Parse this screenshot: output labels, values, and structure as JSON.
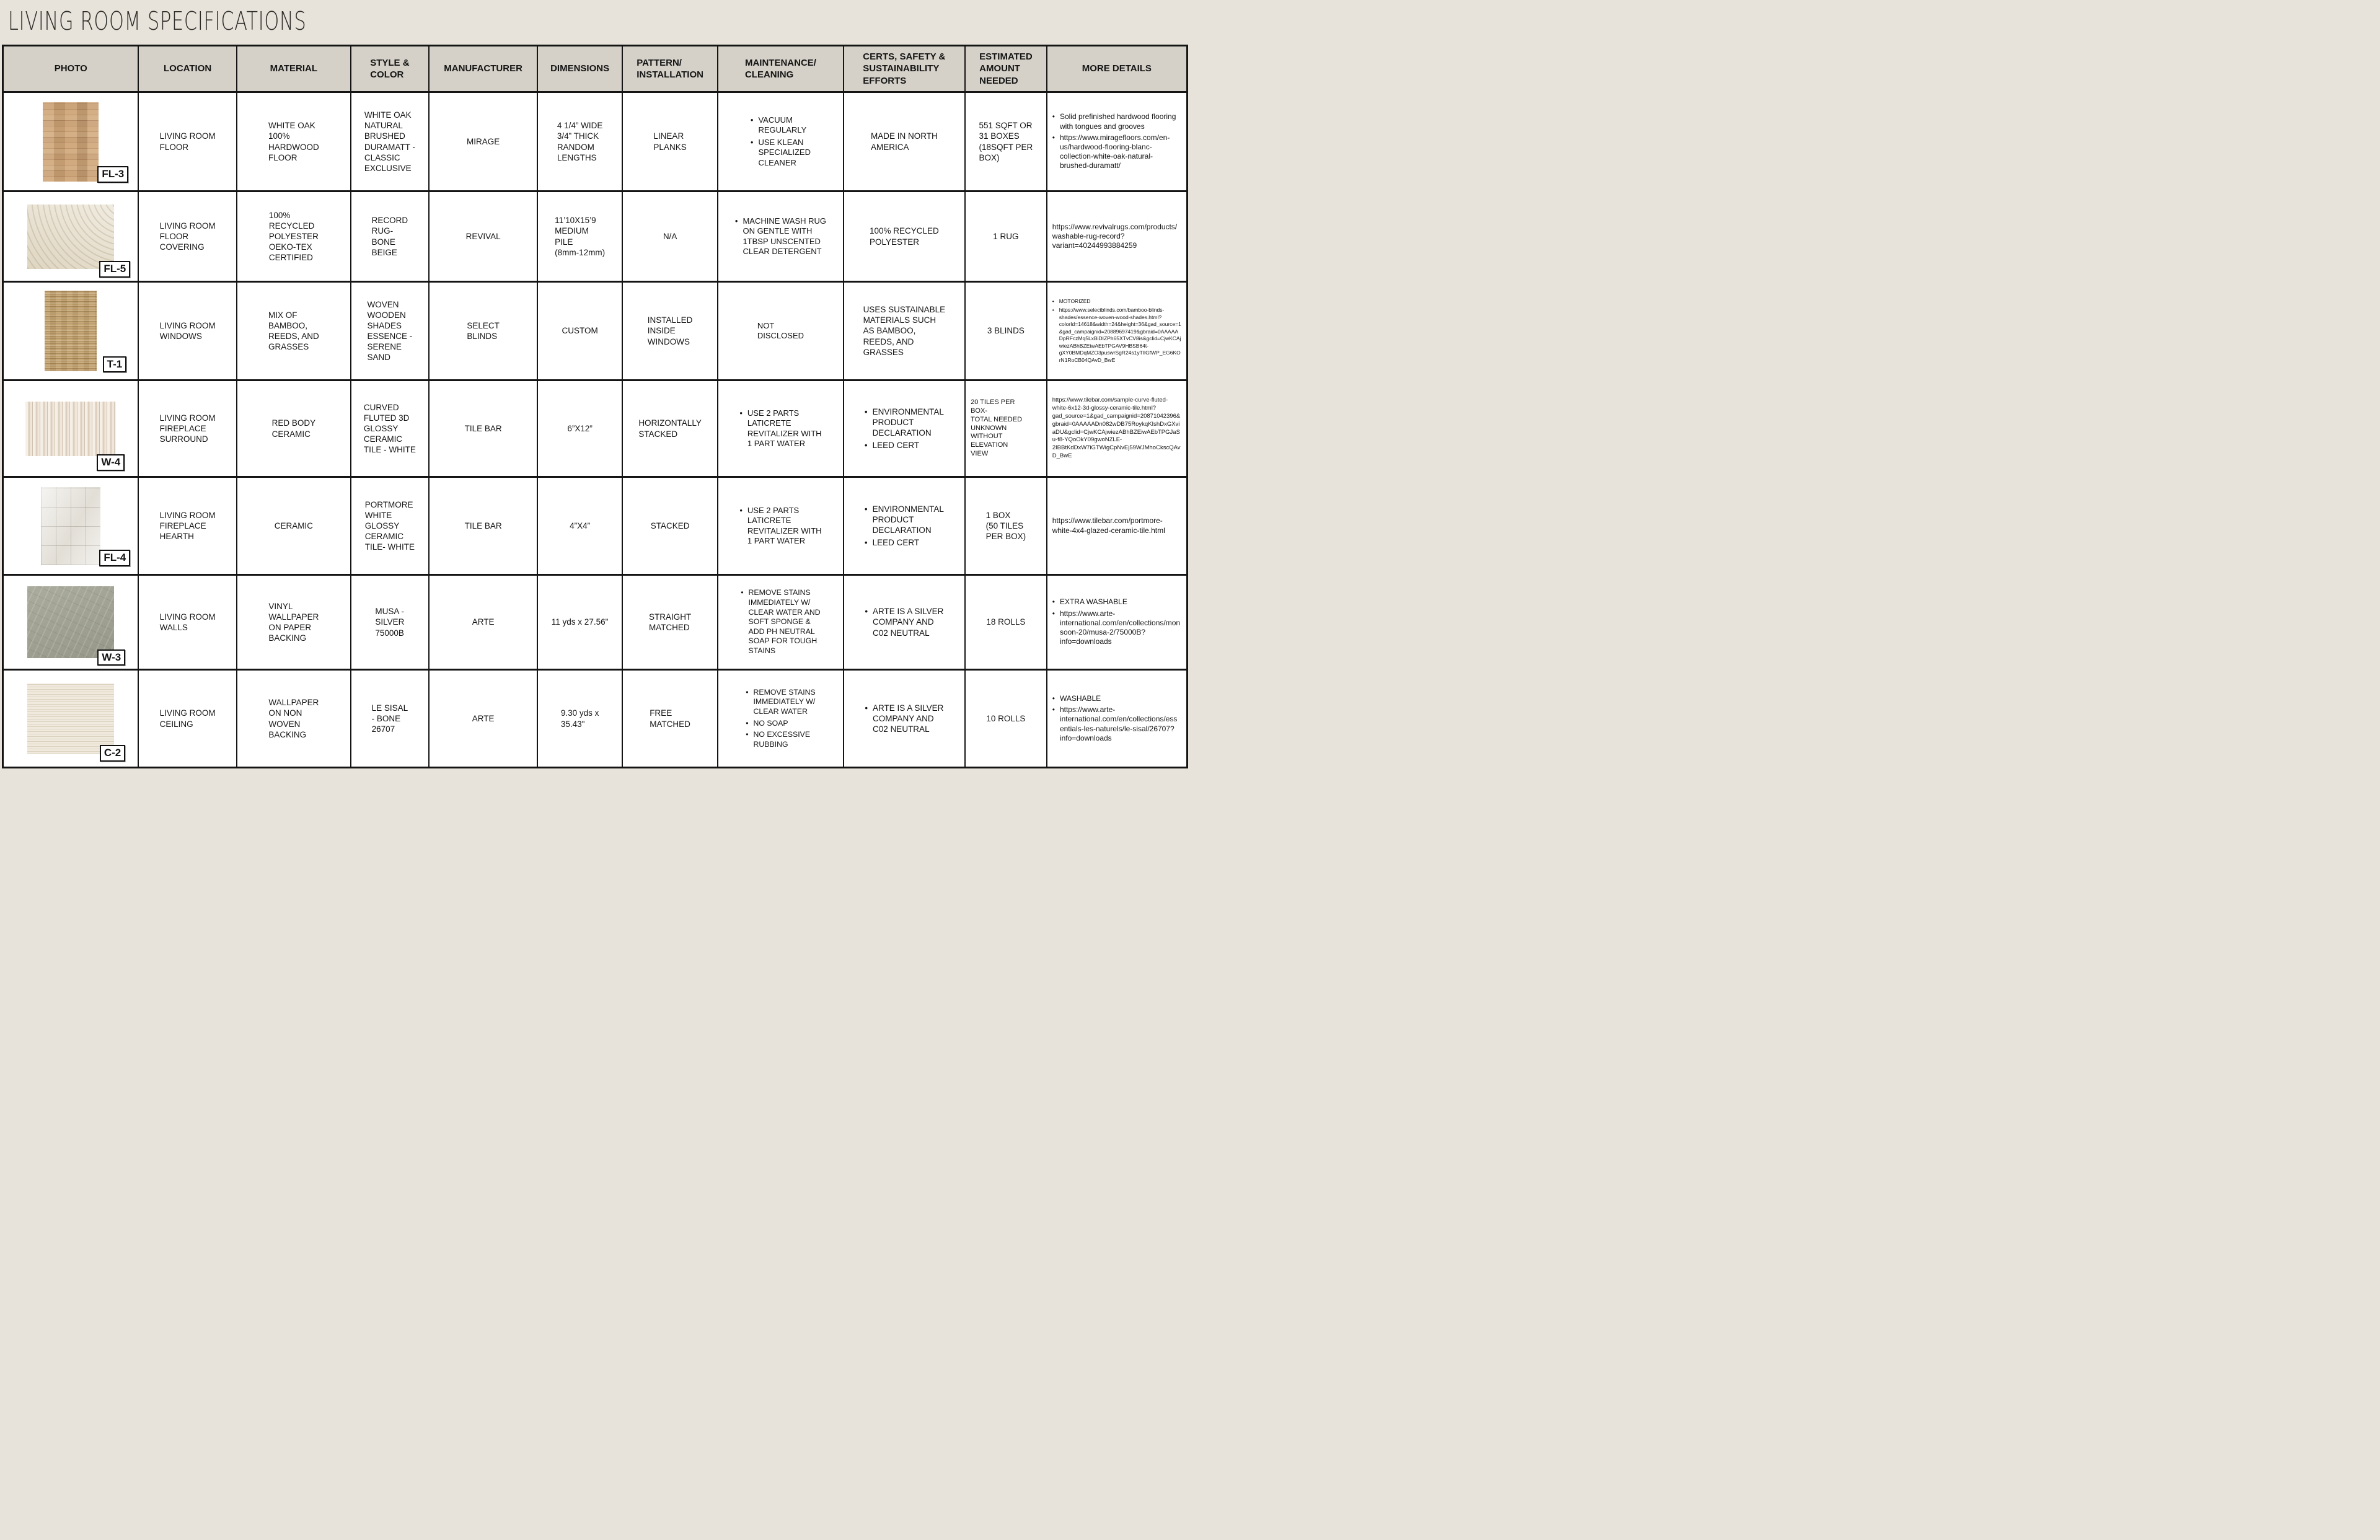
{
  "page": {
    "title": "LIVING ROOM SPECIFICATIONS"
  },
  "table": {
    "columns": [
      "PHOTO",
      "LOCATION",
      "MATERIAL",
      "STYLE &\nCOLOR",
      "MANUFACTURER",
      "DIMENSIONS",
      "PATTERN/\nINSTALLATION",
      "MAINTENANCE/\nCLEANING",
      "CERTS, SAFETY &\nSUSTAINABILITY\nEFFORTS",
      "ESTIMATED\nAMOUNT\nNEEDED",
      "MORE DETAILS"
    ],
    "rows": [
      {
        "tag": "FL-3",
        "photo_name": "white-oak-flooring-swatch",
        "location": "LIVING ROOM\nFLOOR",
        "material": "WHITE OAK\n100%\nHARDWOOD\nFLOOR",
        "style_color": "WHITE OAK\nNATURAL\nBRUSHED\nDURAMATT -\nCLASSIC\nEXCLUSIVE",
        "manufacturer": "MIRAGE",
        "dimensions": "4 1/4” WIDE\n3/4” THICK\nRANDOM\nLENGTHS",
        "pattern_installation": "LINEAR\nPLANKS",
        "maintenance_cleaning": [
          "VACUUM\nREGULARLY",
          "USE KLEAN\nSPECIALIZED\nCLEANER"
        ],
        "certs_sustainability": "MADE IN NORTH\nAMERICA",
        "estimated_amount": "551 SQFT OR\n31 BOXES\n(18SQFT PER\nBOX)",
        "more_details": [
          "Solid prefinished hardwood flooring with tongues and grooves",
          "https://www.miragefloors.com/en-us/hardwood-flooring-blanc-collection-white-oak-natural-brushed-duramatt/"
        ]
      },
      {
        "tag": "FL-5",
        "photo_name": "record-rug-swatch",
        "location": "LIVING ROOM\nFLOOR\nCOVERING",
        "material": "100%\nRECYCLED\nPOLYESTER\nOEKO-TEX\nCERTIFIED",
        "style_color": "RECORD\nRUG-\nBONE\nBEIGE",
        "manufacturer": "REVIVAL",
        "dimensions": "11’10X15’9\nMEDIUM\nPILE\n(8mm-12mm)",
        "pattern_installation": "N/A",
        "maintenance_cleaning": [
          "MACHINE WASH RUG\nON GENTLE WITH\n1TBSP UNSCENTED\nCLEAR DETERGENT"
        ],
        "certs_sustainability": "100% RECYCLED\nPOLYESTER",
        "estimated_amount": "1 RUG",
        "more_details": "https://www.revivalrugs.com/products/washable-rug-record?variant=40244993884259"
      },
      {
        "tag": "T-1",
        "photo_name": "woven-wood-shade-swatch",
        "location": "LIVING ROOM\nWINDOWS",
        "material": "MIX OF\nBAMBOO,\nREEDS, AND\nGRASSES",
        "style_color": "WOVEN\nWOODEN\nSHADES\nESSENCE -\nSERENE\nSAND",
        "manufacturer": "SELECT\nBLINDS",
        "dimensions": "CUSTOM",
        "pattern_installation": "INSTALLED\nINSIDE\nWINDOWS",
        "maintenance_cleaning": "NOT\nDISCLOSED",
        "certs_sustainability": "USES SUSTAINABLE\nMATERIALS SUCH\nAS BAMBOO,\nREEDS, AND\nGRASSES",
        "estimated_amount": "3 BLINDS",
        "more_details": [
          "MOTORIZED",
          "https://www.selectblinds.com/bamboo-blinds-shades/essence-woven-wood-shades.html?colorId=14618&width=24&height=36&gad_source=1&gad_campaignid=20889697419&gbraid=0AAAAADpRFczMq5LxBiDIZPh65XTvCV8is&gclid=CjwKCAjwiezABhBZEiwAEbTPGAV9HBSB64t-gXY0BMDqMZO3puswrSgR24s1yTIlGfWP_EG6KOrN1RoCB04QAvD_BwE"
        ]
      },
      {
        "tag": "W-4",
        "photo_name": "curve-fluted-tile-swatch",
        "location": "LIVING ROOM\nFIREPLACE\nSURROUND",
        "material": "RED BODY\nCERAMIC",
        "style_color": "CURVED\nFLUTED 3D\nGLOSSY\nCERAMIC\nTILE - WHITE",
        "manufacturer": "TILE BAR",
        "dimensions": "6”X12”",
        "pattern_installation": "HORIZONTALLY\nSTACKED",
        "maintenance_cleaning": [
          "USE 2 PARTS\nLATICRETE\nREVITALIZER WITH\n1 PART WATER"
        ],
        "certs_sustainability": [
          "ENVIRONMENTAL\nPRODUCT\nDECLARATION",
          "LEED CERT"
        ],
        "estimated_amount": "20 TILES PER\nBOX-\nTOTAL NEEDED\nUNKNOWN\nWITHOUT\nELEVATION\nVIEW",
        "more_details": "https://www.tilebar.com/sample-curve-fluted-white-6x12-3d-glossy-ceramic-tile.html?gad_source=1&gad_campaignid=20871042396&gbraid=0AAAAADn082wDB75RoykqKIshDxGXviaDU&gclid=CjwKCAjwiezABhBZEiwAEbTPGJaSu-f8-YQoOkY09gwoNZLE-2IBBtKdDxW7iGTWigCpNvEj59WJMhoCkscQAvD_BwE"
      },
      {
        "tag": "FL-4",
        "photo_name": "portmore-tile-swatch",
        "location": "LIVING ROOM\nFIREPLACE\nHEARTH",
        "material": "CERAMIC",
        "style_color": "PORTMORE\nWHITE\nGLOSSY\nCERAMIC\nTILE- WHITE",
        "manufacturer": "TILE BAR",
        "dimensions": "4”X4”",
        "pattern_installation": "STACKED",
        "maintenance_cleaning": [
          "USE 2 PARTS\nLATICRETE\nREVITALIZER WITH\n1 PART WATER"
        ],
        "certs_sustainability": [
          "ENVIRONMENTAL\nPRODUCT\nDECLARATION",
          "LEED CERT"
        ],
        "estimated_amount": "1 BOX\n(50 TILES\nPER BOX)",
        "more_details": "https://www.tilebar.com/portmore-white-4x4-glazed-ceramic-tile.html"
      },
      {
        "tag": "W-3",
        "photo_name": "musa-wallpaper-swatch",
        "location": "LIVING ROOM\nWALLS",
        "material": "VINYL\nWALLPAPER\nON PAPER\nBACKING",
        "style_color": "MUSA -\nSILVER\n75000B",
        "manufacturer": "ARTE",
        "dimensions": "11 yds x 27.56\"",
        "pattern_installation": "STRAIGHT\nMATCHED",
        "maintenance_cleaning": [
          "REMOVE STAINS\nIMMEDIATELY W/\nCLEAR WATER AND\nSOFT SPONGE &\nADD PH NEUTRAL\nSOAP FOR TOUGH\nSTAINS"
        ],
        "certs_sustainability": [
          "ARTE IS A SILVER\nCOMPANY AND\nC02 NEUTRAL"
        ],
        "estimated_amount": "18 ROLLS",
        "more_details": [
          "EXTRA WASHABLE",
          "https://www.arte-international.com/en/collections/monsoon-20/musa-2/75000B?info=downloads"
        ]
      },
      {
        "tag": "C-2",
        "photo_name": "le-sisal-wallpaper-swatch",
        "location": "LIVING ROOM\nCEILING",
        "material": "WALLPAPER\nON NON\nWOVEN\nBACKING",
        "style_color": "LE SISAL\n- BONE\n26707",
        "manufacturer": "ARTE",
        "dimensions": "9.30 yds x\n35.43\"",
        "pattern_installation": "FREE\nMATCHED",
        "maintenance_cleaning": [
          "REMOVE STAINS\nIMMEDIATELY W/\nCLEAR WATER",
          "NO SOAP",
          "NO EXCESSIVE\nRUBBING"
        ],
        "certs_sustainability": [
          "ARTE IS A SILVER\nCOMPANY AND\nC02 NEUTRAL"
        ],
        "estimated_amount": "10 ROLLS",
        "more_details": [
          "WASHABLE",
          "https://www.arte-international.com/en/collections/essentials-les-naturels/le-sisal/26707?info=downloads"
        ]
      }
    ]
  }
}
